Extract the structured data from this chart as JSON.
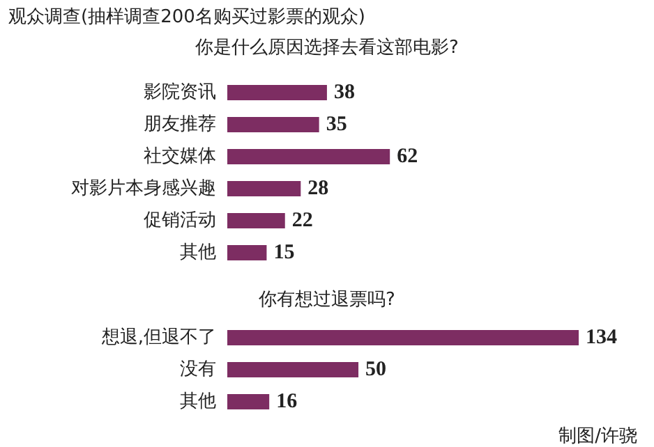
{
  "chart_data": [
    {
      "type": "bar",
      "orientation": "horizontal",
      "title": "观众调查(抽样调查200名购买过影票的观众)",
      "subtitle": "你是什么原因选择去看这部电影?",
      "categories": [
        "影院资讯",
        "朋友推荐",
        "社交媒体",
        "对影片本身感兴趣",
        "促销活动",
        "其他"
      ],
      "values": [
        38,
        35,
        62,
        28,
        22,
        15
      ],
      "color": "#7d2d62",
      "data_labels": true
    },
    {
      "type": "bar",
      "orientation": "horizontal",
      "subtitle": "你有想过退票吗?",
      "categories": [
        "想退,但退不了",
        "没有",
        "其他"
      ],
      "values": [
        134,
        50,
        16
      ],
      "color": "#7d2d62",
      "data_labels": true,
      "annotations": [
        "制图/许骁"
      ]
    }
  ]
}
